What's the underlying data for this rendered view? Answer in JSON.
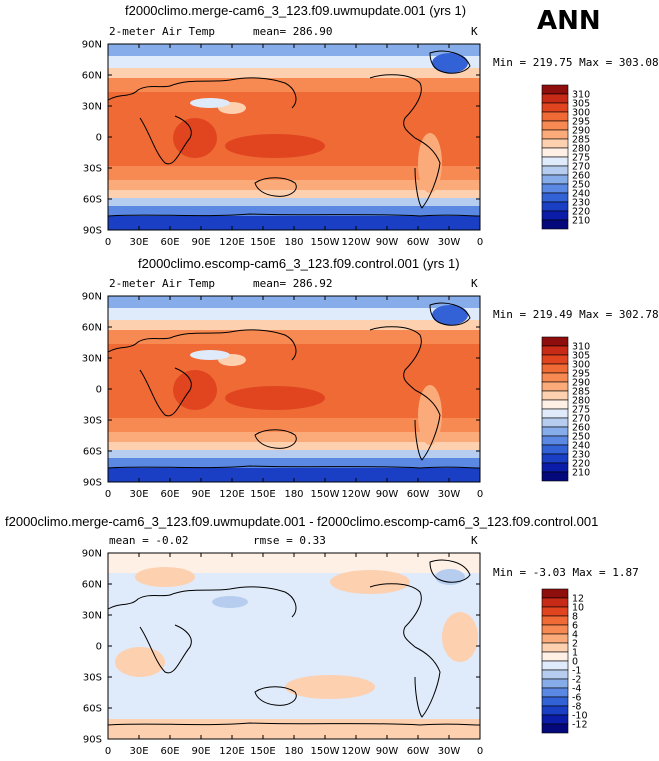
{
  "season": "ANN",
  "panels": [
    {
      "title": "f2000climo.merge-cam6_3_123.f09.uwmupdate.001 (yrs 1)",
      "variable": "2-meter Air Temp",
      "mean_text": "mean=  286.90",
      "units": "K",
      "minmax_text": "Min = 219.75 Max = 303.08",
      "colorbar_levels": [
        "310",
        "305",
        "300",
        "295",
        "290",
        "285",
        "280",
        "275",
        "270",
        "260",
        "250",
        "240",
        "230",
        "220",
        "210"
      ],
      "colorbar_colors": [
        "#8e0d0d",
        "#c72a16",
        "#e0451f",
        "#ef6a35",
        "#f78a52",
        "#fbab7a",
        "#fdd0b0",
        "#fff0e6",
        "#dfeafa",
        "#b6cdf0",
        "#86acea",
        "#5b88e3",
        "#3361d6",
        "#1a3fc4",
        "#0a1ca8",
        "#05087a"
      ]
    },
    {
      "title": "f2000climo.escomp-cam6_3_123.f09.control.001 (yrs 1)",
      "variable": "2-meter Air Temp",
      "mean_text": "mean=  286.92",
      "units": "K",
      "minmax_text": "Min = 219.49 Max = 302.78",
      "colorbar_levels": [
        "310",
        "305",
        "300",
        "295",
        "290",
        "285",
        "280",
        "275",
        "270",
        "260",
        "250",
        "240",
        "230",
        "220",
        "210"
      ],
      "colorbar_colors": [
        "#8e0d0d",
        "#c72a16",
        "#e0451f",
        "#ef6a35",
        "#f78a52",
        "#fbab7a",
        "#fdd0b0",
        "#fff0e6",
        "#dfeafa",
        "#b6cdf0",
        "#86acea",
        "#5b88e3",
        "#3361d6",
        "#1a3fc4",
        "#0a1ca8",
        "#05087a"
      ]
    },
    {
      "title": "f2000climo.merge-cam6_3_123.f09.uwmupdate.001 - f2000climo.escomp-cam6_3_123.f09.control.001",
      "mean_text": "mean =   -0.02",
      "rmse_text": "rmse =     0.33",
      "units": "K",
      "minmax_text": "Min =  -3.03 Max =   1.87",
      "colorbar_levels": [
        "12",
        "10",
        "8",
        "6",
        "4",
        "2",
        "1",
        "0",
        "-1",
        "-2",
        "-4",
        "-6",
        "-8",
        "-10",
        "-12"
      ],
      "colorbar_colors": [
        "#8e0d0d",
        "#c72a16",
        "#e0451f",
        "#ef6a35",
        "#f78a52",
        "#fbab7a",
        "#fdd0b0",
        "#fff0e6",
        "#dfeafa",
        "#b6cdf0",
        "#86acea",
        "#5b88e3",
        "#3361d6",
        "#1a3fc4",
        "#0a1ca8",
        "#05087a"
      ]
    }
  ],
  "lat_labels": [
    "90N",
    "60N",
    "30N",
    "0",
    "30S",
    "60S",
    "90S"
  ],
  "lon_labels": [
    "0",
    "30E",
    "60E",
    "90E",
    "120E",
    "150E",
    "180",
    "150W",
    "120W",
    "90W",
    "60W",
    "30W",
    "0"
  ]
}
